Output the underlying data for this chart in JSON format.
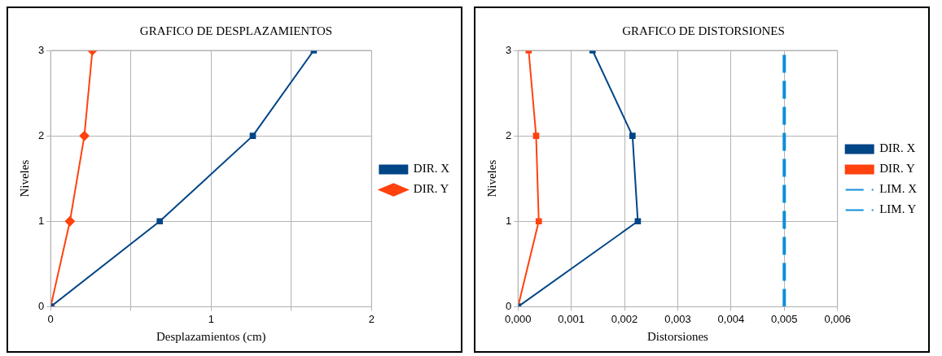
{
  "chart_data": [
    {
      "type": "line",
      "title": "GRAFICO DE DESPLAZAMIENTOS",
      "xlabel": "Desplazamientos (cm)",
      "ylabel": "Niveles",
      "xlim": [
        0,
        2
      ],
      "xticks": [
        0,
        {
          "value": 0.5,
          "label": null
        },
        1,
        {
          "value": 1.5,
          "label": null
        },
        2
      ],
      "ylim": [
        0,
        3
      ],
      "yticks": [
        0,
        1,
        2,
        3
      ],
      "grid": true,
      "legend": "right",
      "series": [
        {
          "name": "DIR. X",
          "color": "#004586",
          "marker": "square",
          "x": [
            0,
            0.68,
            1.26,
            1.64
          ],
          "values": [
            0,
            1,
            2,
            3
          ]
        },
        {
          "name": "DIR. Y",
          "color": "#ff420e",
          "marker": "diamond",
          "x": [
            0,
            0.12,
            0.21,
            0.26
          ],
          "values": [
            0,
            1,
            2,
            3
          ]
        }
      ]
    },
    {
      "type": "line",
      "title": "GRAFICO DE DISTORSIONES",
      "xlabel": "Distorsiones",
      "ylabel": "Niveles",
      "xlim": [
        0,
        0.006
      ],
      "xticks": [
        {
          "value": 0,
          "label": "0,000"
        },
        {
          "value": 0.001,
          "label": "0,001"
        },
        {
          "value": 0.002,
          "label": "0,002"
        },
        {
          "value": 0.003,
          "label": "0,003"
        },
        {
          "value": 0.004,
          "label": "0,004"
        },
        {
          "value": 0.005,
          "label": "0,005"
        },
        {
          "value": 0.006,
          "label": "0,006"
        }
      ],
      "ylim": [
        0,
        3
      ],
      "yticks": [
        0,
        1,
        2,
        3
      ],
      "grid": true,
      "legend": "right",
      "series": [
        {
          "name": "DIR. X",
          "color": "#004586",
          "marker": "square",
          "x": [
            0,
            0.00225,
            0.00215,
            0.0014
          ],
          "values": [
            0,
            1,
            2,
            3
          ]
        },
        {
          "name": "DIR. Y",
          "color": "#ff420e",
          "marker": "square",
          "x": [
            0,
            0.00039,
            0.00034,
            0.0002
          ],
          "values": [
            0,
            1,
            2,
            3
          ]
        },
        {
          "name": "LIM. X",
          "color": "#0e8ed8",
          "marker": "none",
          "line_style": "dashed"
        },
        {
          "name": "LIM. Y",
          "color": "#0e8ed8",
          "marker": "none",
          "line_style": "dashed",
          "x": [
            0.005,
            0.005
          ],
          "values": [
            0,
            3
          ]
        }
      ]
    }
  ]
}
